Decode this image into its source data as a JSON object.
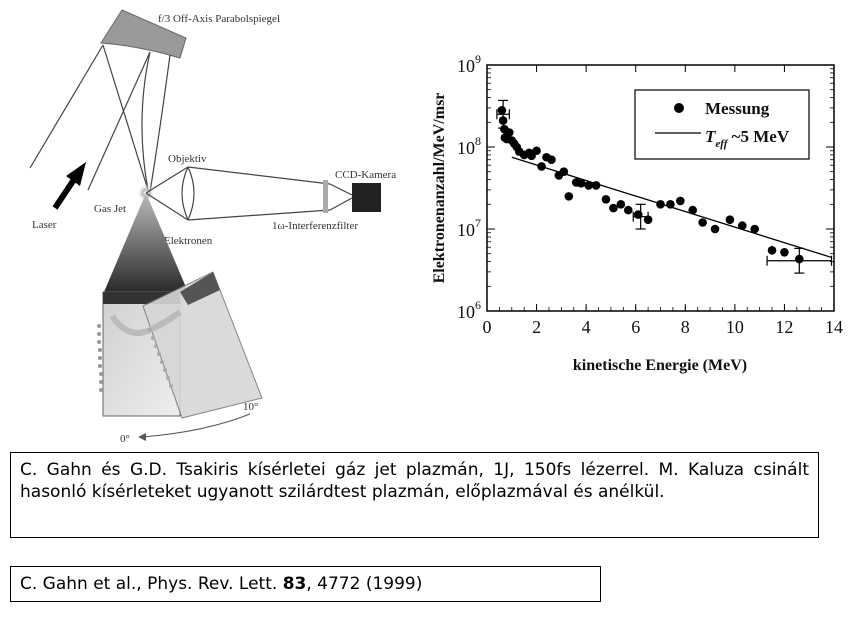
{
  "diagram": {
    "labels": {
      "mirror": "f/3 Off-Axis Parabolspiegel",
      "objective": "Objektiv",
      "ccd": "CCD-Kamera",
      "laser": "Laser",
      "gasjet": "Gas Jet",
      "filter": "1ω-Interferenzfilter",
      "electrons": "Elektronen",
      "angle10": "10°",
      "angle0": "0°"
    }
  },
  "chart_data": {
    "type": "scatter",
    "xlabel": "kinetische Energie (MeV)",
    "ylabel": "Elektronenanzahl/MeV/msr",
    "xlim": [
      0,
      14
    ],
    "ylim": [
      1000000,
      1000000000
    ],
    "yscale": "log",
    "x_ticks": [
      "0",
      "2",
      "4",
      "6",
      "8",
      "10",
      "12",
      "14"
    ],
    "y_ticks": [
      {
        "base": "10",
        "exp": "6"
      },
      {
        "base": "10",
        "exp": "7"
      },
      {
        "base": "10",
        "exp": "8"
      },
      {
        "base": "10",
        "exp": "9"
      }
    ],
    "legend_position": "top-right",
    "legend": {
      "measurement": "Messung",
      "fit_symbol": "T",
      "fit_subscript": "eff",
      "fit_rest": " ~5 MeV"
    },
    "points": [
      {
        "x": 0.6,
        "y": 280000000
      },
      {
        "x": 0.65,
        "y": 210000000
      },
      {
        "x": 0.7,
        "y": 165000000
      },
      {
        "x": 0.72,
        "y": 130000000
      },
      {
        "x": 0.8,
        "y": 125000000
      },
      {
        "x": 0.9,
        "y": 150000000
      },
      {
        "x": 1.0,
        "y": 120000000
      },
      {
        "x": 1.1,
        "y": 110000000
      },
      {
        "x": 1.2,
        "y": 100000000
      },
      {
        "x": 1.3,
        "y": 88000000
      },
      {
        "x": 1.5,
        "y": 80000000
      },
      {
        "x": 1.7,
        "y": 85000000
      },
      {
        "x": 1.8,
        "y": 78000000
      },
      {
        "x": 2.0,
        "y": 90000000
      },
      {
        "x": 2.2,
        "y": 58000000
      },
      {
        "x": 2.4,
        "y": 75000000
      },
      {
        "x": 2.6,
        "y": 70000000
      },
      {
        "x": 2.9,
        "y": 45000000
      },
      {
        "x": 3.1,
        "y": 50000000
      },
      {
        "x": 3.3,
        "y": 25000000
      },
      {
        "x": 3.6,
        "y": 37000000
      },
      {
        "x": 3.8,
        "y": 36000000
      },
      {
        "x": 4.1,
        "y": 34000000
      },
      {
        "x": 4.4,
        "y": 34000000
      },
      {
        "x": 4.8,
        "y": 23000000
      },
      {
        "x": 5.1,
        "y": 18000000
      },
      {
        "x": 5.4,
        "y": 20000000
      },
      {
        "x": 5.7,
        "y": 17000000
      },
      {
        "x": 6.1,
        "y": 15000000
      },
      {
        "x": 6.5,
        "y": 13000000
      },
      {
        "x": 7.0,
        "y": 20000000
      },
      {
        "x": 7.4,
        "y": 20000000
      },
      {
        "x": 7.8,
        "y": 22000000
      },
      {
        "x": 8.3,
        "y": 17000000
      },
      {
        "x": 8.7,
        "y": 12000000
      },
      {
        "x": 9.2,
        "y": 10000000
      },
      {
        "x": 9.8,
        "y": 13000000
      },
      {
        "x": 10.3,
        "y": 11000000
      },
      {
        "x": 10.8,
        "y": 10000000
      },
      {
        "x": 11.5,
        "y": 5500000
      },
      {
        "x": 12.0,
        "y": 5200000
      },
      {
        "x": 12.6,
        "y": 4300000
      }
    ],
    "error_bars": [
      {
        "x": 0.65,
        "y_low": 170000000,
        "y_high": 370000000,
        "x_low": 0.4,
        "x_high": 0.9
      },
      {
        "x": 6.2,
        "y_low": 10000000,
        "y_high": 20000000,
        "x_low": 5.9,
        "x_high": 6.5
      },
      {
        "x": 12.6,
        "y_low": 2900000,
        "y_high": 5800000,
        "x_low": 11.3,
        "x_high": 13.9
      }
    ],
    "fit_line": [
      {
        "x": 1.0,
        "y": 75000000
      },
      {
        "x": 13.9,
        "y": 4500000
      }
    ]
  },
  "caption": {
    "text": "C. Gahn és G.D. Tsakiris kísérletei gáz jet plazmán, 1J, 150fs lézerrel. M. Kaluza csinált hasonló kísérleteket ugyanott szilárdtest plazmán, előplazmával és anélkül."
  },
  "reference": {
    "prefix": "C. Gahn et al., Phys. Rev. Lett. ",
    "volume": "83",
    "suffix": ", 4772 (1999)"
  }
}
